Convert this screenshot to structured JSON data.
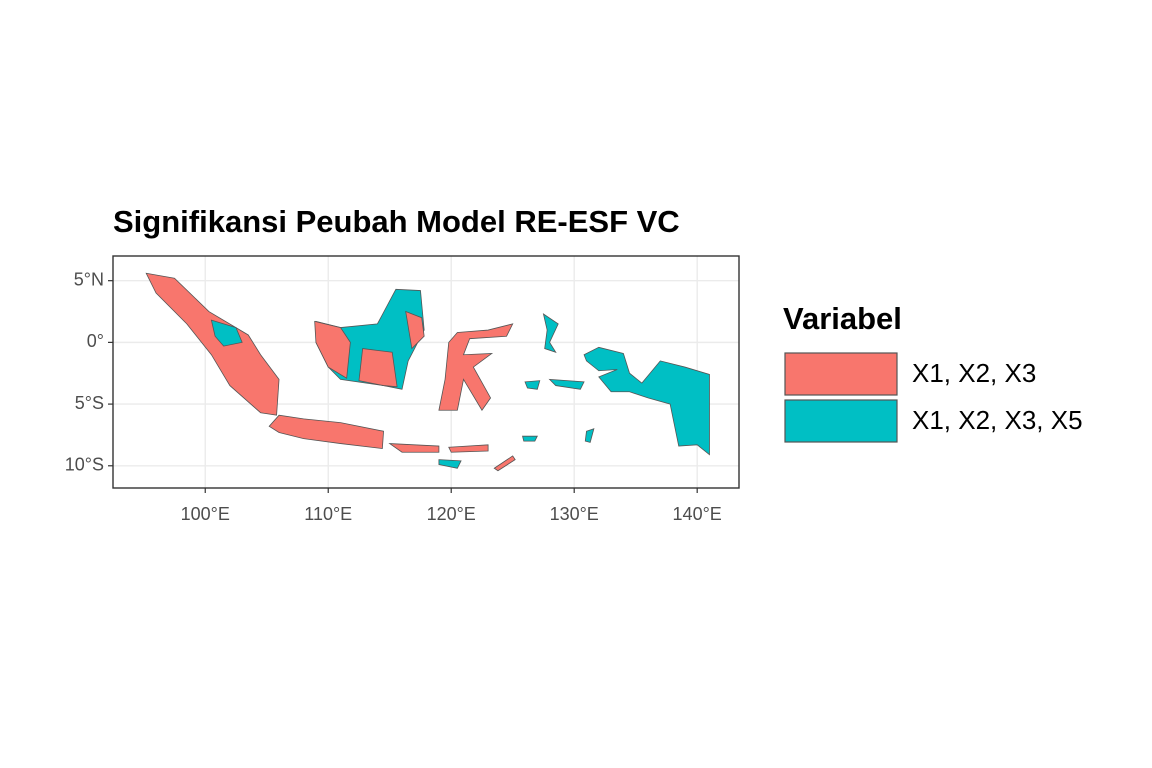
{
  "chart_data": {
    "type": "map",
    "title": "Signifikansi Peubah Model RE-ESF VC",
    "xlim": [
      92.5,
      143.4
    ],
    "ylim": [
      -11.8,
      7.0
    ],
    "xticks": [
      {
        "value": 100,
        "label": "100°E"
      },
      {
        "value": 110,
        "label": "110°E"
      },
      {
        "value": 120,
        "label": "120°E"
      },
      {
        "value": 130,
        "label": "130°E"
      },
      {
        "value": 140,
        "label": "140°E"
      }
    ],
    "yticks": [
      {
        "value": 5,
        "label": "5°N"
      },
      {
        "value": 0,
        "label": "0°"
      },
      {
        "value": -5,
        "label": "5°S"
      },
      {
        "value": -10,
        "label": "10°S"
      }
    ],
    "grid": true,
    "legend": {
      "title": "Variabel",
      "position": "right",
      "items": [
        {
          "name": "X1, X2, X3",
          "color": "#f8766d"
        },
        {
          "name": "X1, X2, X3, X5",
          "color": "#00bfc4"
        }
      ]
    }
  }
}
